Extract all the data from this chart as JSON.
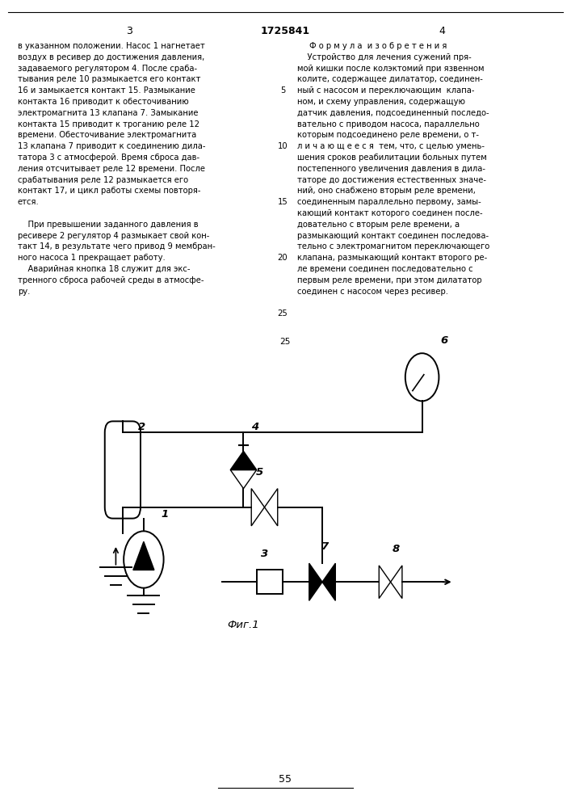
{
  "left_text": [
    "в указанном положении. Насос 1 нагнетает",
    "воздух в ресивер до достижения давления,",
    "задаваемого регулятором 4. После сраба-",
    "тывания реле 10 размыкается его контакт",
    "16 и замыкается контакт 15. Размыкание",
    "контакта 16 приводит к обесточиванию",
    "электромагнита 13 клапана 7. Замыкание",
    "контакта 15 приводит к троганию реле 12",
    "времени. Обесточивание электромагнита",
    "13 клапана 7 приводит к соединению дила-",
    "татора 3 с атмосферой. Время сброса дав-",
    "ления отсчитывает реле 12 времени. После",
    "срабатывания реле 12 размыкается его",
    "контакт 17, и цикл работы схемы повторя-",
    "ется.",
    "",
    "    При превышении заданного давления в",
    "ресивере 2 регулятор 4 размыкает свой кон-",
    "такт 14, в результате чего привод 9 мембран-",
    "ного насоса 1 прекращает работу.",
    "    Аварийная кнопка 18 служит для экс-",
    "тренного сброса рабочей среды в атмосфе-",
    "ру."
  ],
  "right_text_title": "Ф о р м у л а  и з о б р е т е н и я",
  "right_text": [
    "    Устройство для лечения сужений пря-",
    "мой кишки после колэктомий при язвенном",
    "колите, содержащее дилататор, соединен-",
    "ный с насосом и переключающим  клапа-",
    "ном, и схему управления, содержащую",
    "датчик давления, подсоединенный последо-",
    "вательно с приводом насоса, параллельно",
    "которым подсоединено реле времени, о т-",
    "л и ч а ю щ е е с я  тем, что, с целью умень-",
    "шения сроков реабилитации больных путем",
    "постепенного увеличения давления в дила-",
    "таторе до достижения естественных значе-",
    "ний, оно снабжено вторым реле времени,",
    "соединенным параллельно первому, замы-",
    "кающий контакт которого соединен после-",
    "довательно с вторым реле времени, а",
    "размыкающий контакт соединен последова-",
    "тельно с электромагнитом переключающего",
    "клапана, размыкающий контакт второго ре-",
    "ле времени соединен последовательно с",
    "первым реле времени, при этом дилататор",
    "соединен с насосом через ресивер."
  ],
  "fig_label": "Фиг.1",
  "page_bottom": "55"
}
